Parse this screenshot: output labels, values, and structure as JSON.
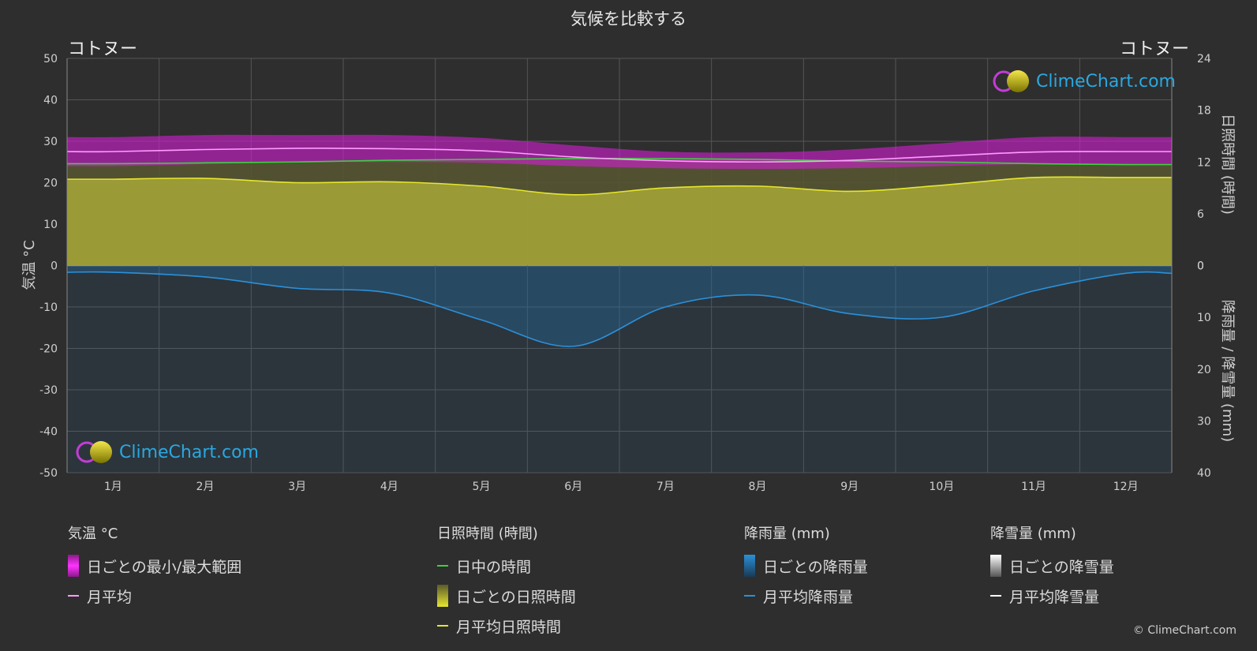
{
  "title": "気候を比較する",
  "location_left": "コトヌー",
  "location_right": "コトヌー",
  "logo_text": "ClimeChart.com",
  "copyright": "© ClimeChart.com",
  "axes": {
    "left_title": "気温 °C",
    "right_top_title": "日照時間 (時間)",
    "right_bottom_title": "降雨量 / 降雪量 (mm)",
    "left_ticks": [
      "50",
      "40",
      "30",
      "20",
      "10",
      "0",
      "-10",
      "-20",
      "-30",
      "-40",
      "-50"
    ],
    "right_top_ticks": [
      "24",
      "18",
      "12",
      "6",
      "0"
    ],
    "right_bottom_ticks": [
      "0",
      "10",
      "20",
      "30",
      "40"
    ]
  },
  "legend": {
    "temp": {
      "head": "気温 °C",
      "range": "日ごとの最小/最大範囲",
      "avg": "月平均"
    },
    "sun": {
      "head": "日照時間 (時間)",
      "daylight": "日中の時間",
      "daily": "日ごとの日照時間",
      "avg": "月平均日照時間"
    },
    "rain": {
      "head": "降雨量 (mm)",
      "daily": "日ごとの降雨量",
      "avg": "月平均降雨量"
    },
    "snow": {
      "head": "降雪量 (mm)",
      "daily": "日ごとの降雪量",
      "avg": "月平均降雪量"
    }
  },
  "colors": {
    "temp_range": "#d61ed6",
    "temp_avg": "#ff9cff",
    "daylight": "#3ecf3e",
    "sunshine_fill": "#b3b33a",
    "sunshine_avg": "#e6e62e",
    "rain_fill": "#1f6fa8",
    "rain_avg": "#2b90d9",
    "snow": "#ffffff"
  },
  "chart_data": {
    "type": "line",
    "categories": [
      "1月",
      "2月",
      "3月",
      "4月",
      "5月",
      "6月",
      "7月",
      "8月",
      "9月",
      "10月",
      "11月",
      "12月"
    ],
    "temperature_axis": {
      "label": "気温 °C",
      "ylim": [
        -50,
        50
      ]
    },
    "sunshine_axis": {
      "label": "日照時間 (時間)",
      "ylim": [
        0,
        24
      ]
    },
    "precip_axis": {
      "label": "降雨量 / 降雪量 (mm)",
      "ylim": [
        0,
        40
      ]
    },
    "series": [
      {
        "name": "月平均",
        "axis": "temperature",
        "values": [
          27.5,
          28.0,
          28.3,
          28.2,
          27.7,
          26.2,
          25.3,
          25.0,
          25.4,
          26.4,
          27.4,
          27.5
        ]
      },
      {
        "name": "日中の時間",
        "axis": "sunshine",
        "values": [
          11.8,
          11.9,
          12.0,
          12.2,
          12.3,
          12.4,
          12.4,
          12.3,
          12.1,
          12.0,
          11.8,
          11.7
        ]
      },
      {
        "name": "月平均日照時間",
        "axis": "sunshine",
        "values": [
          10.0,
          10.1,
          9.6,
          9.7,
          9.2,
          8.2,
          9.0,
          9.2,
          8.6,
          9.3,
          10.2,
          10.2
        ]
      },
      {
        "name": "月平均降雨量",
        "axis": "precip",
        "values": [
          1.3,
          2.2,
          4.4,
          5.3,
          10.5,
          15.6,
          8.0,
          5.7,
          9.3,
          10.0,
          4.9,
          1.5
        ]
      },
      {
        "name": "日ごとの最小/最大範囲",
        "axis": "temperature",
        "min": [
          24.0,
          24.5,
          25.0,
          25.0,
          24.8,
          24.0,
          23.5,
          23.3,
          23.5,
          24.0,
          24.5,
          24.3
        ],
        "max": [
          31.0,
          31.5,
          31.5,
          31.5,
          30.8,
          29.0,
          27.5,
          27.3,
          28.0,
          29.5,
          31.0,
          31.0
        ]
      }
    ]
  }
}
